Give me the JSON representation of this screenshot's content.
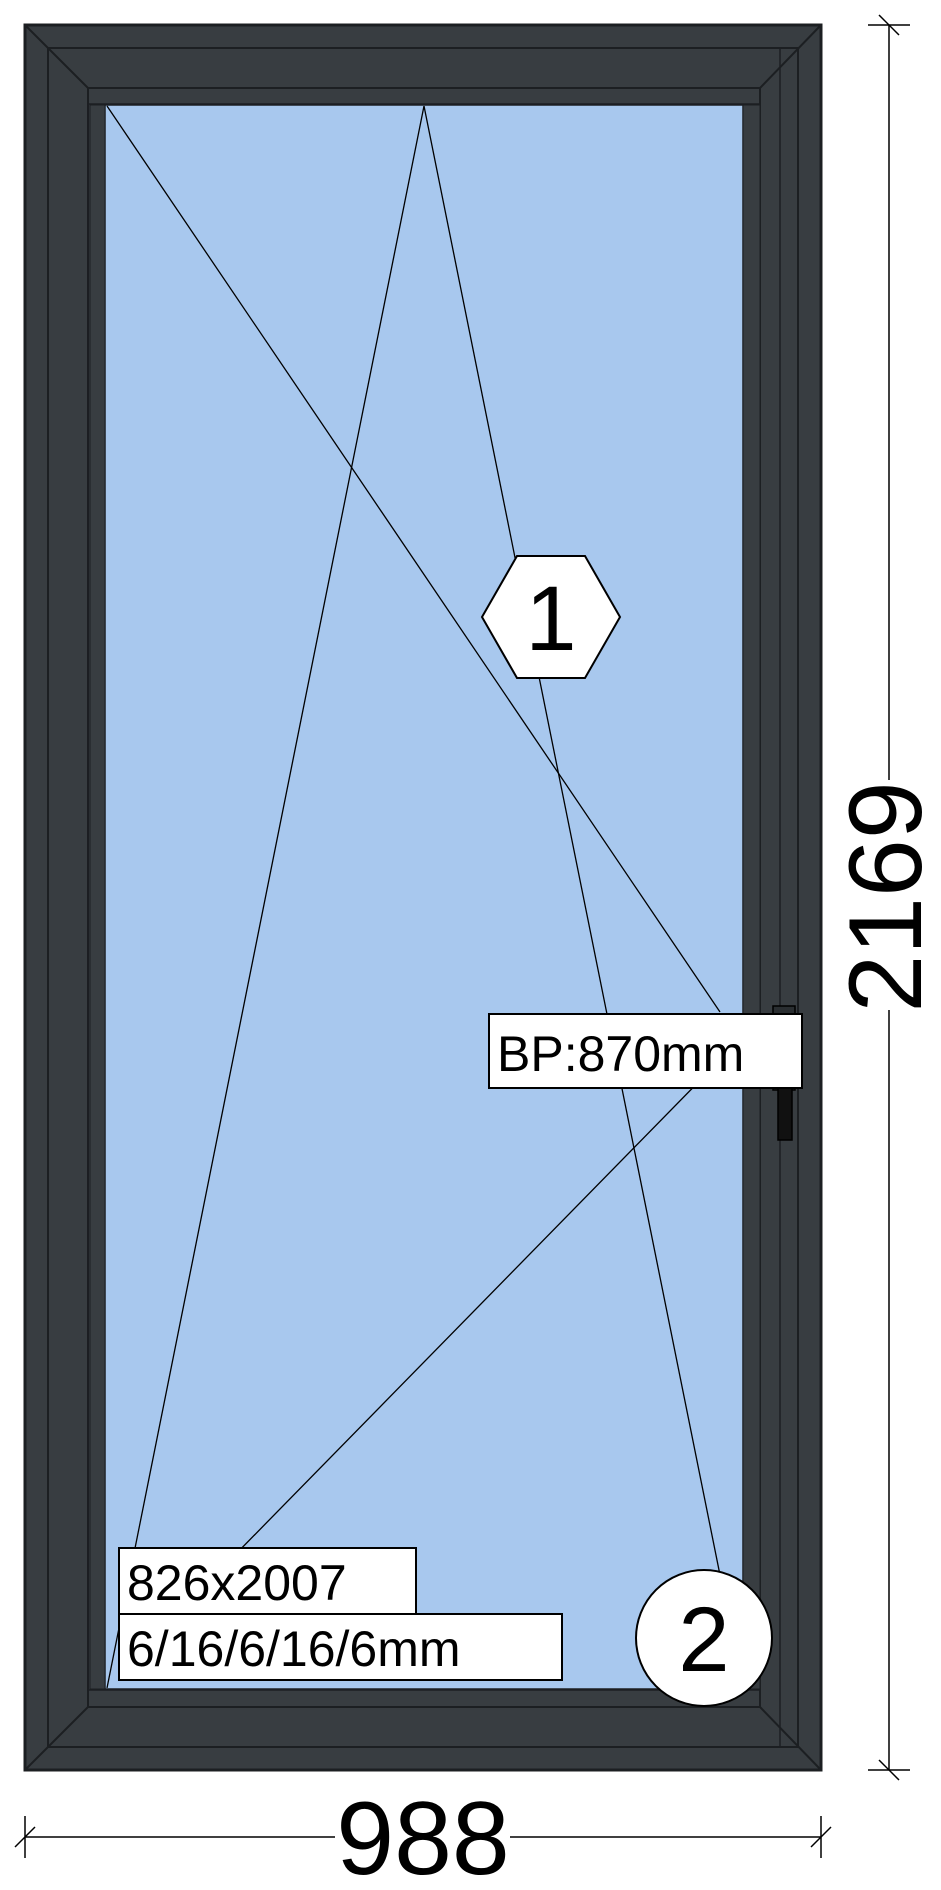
{
  "dimensions": {
    "width": "988",
    "height": "2169"
  },
  "sash_markers": {
    "hexagon": "1",
    "circle": "2"
  },
  "labels": {
    "handle_height": "BP:870mm",
    "glass_size": "826x2007",
    "glass_spec": "6/16/6/16/6mm"
  },
  "colors": {
    "frame": "#383d41",
    "frame_line": "#1c1f22",
    "glass": "#a8c8ee",
    "background": "#ffffff",
    "line": "#000000"
  },
  "icons": {
    "handle": "handle-icon"
  }
}
